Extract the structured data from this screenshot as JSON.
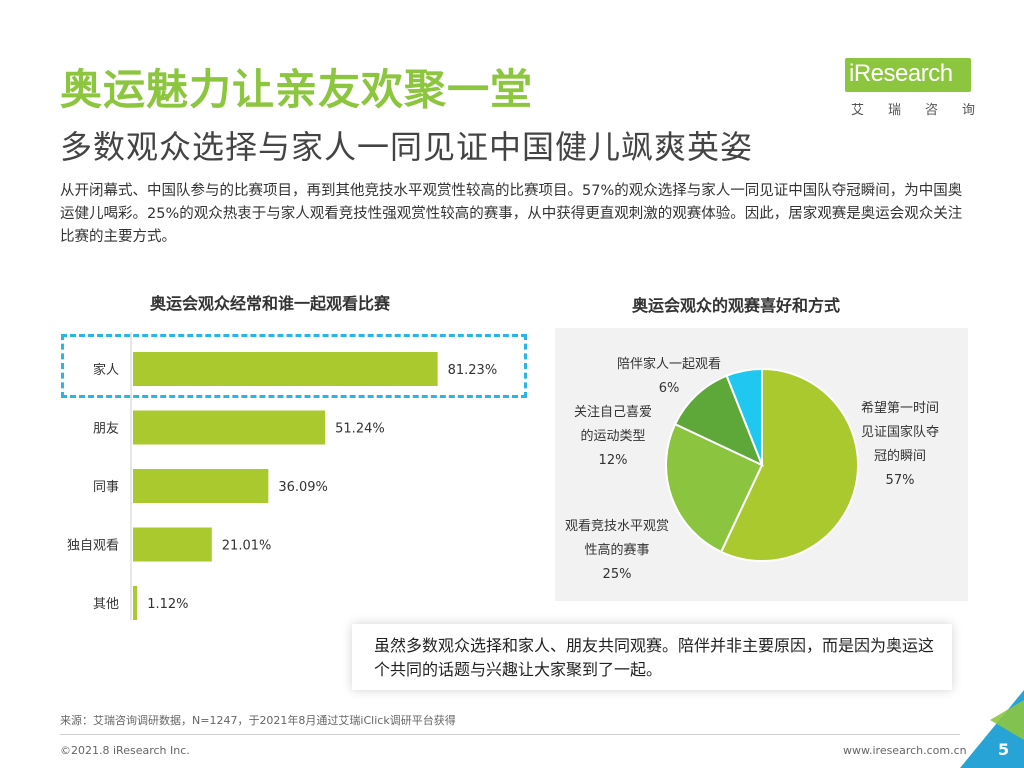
{
  "header": {
    "title": "奥运魅力让亲友欢聚一堂",
    "subtitle": "多数观众选择与家人一同见证中国健儿飒爽英姿",
    "description": "从开闭幕式、中国队参与的比赛项目，再到其他竞技水平观赏性较高的比赛项目。57%的观众选择与家人一同见证中国队夺冠瞬间，为中国奥运健儿喝彩。25%的观众热衷于与家人观看竞技性强观赏性较高的赛事，从中获得更直观刺激的观赛体验。因此，居家观赛是奥运会观众关注比赛的主要方式。"
  },
  "logo": {
    "text": "iResearch",
    "cn": "艾瑞咨询"
  },
  "callout": "虽然多数观众选择和家人、朋友共同观赛。陪伴并非主要原因，而是因为奥运这个共同的话题与兴趣让大家聚到了一起。",
  "footer": {
    "source": "来源：艾瑞咨询调研数据，N=1247，于2021年8月通过艾瑞iClick调研平台获得",
    "copyright": "©2021.8 iResearch Inc.",
    "website": "www.iresearch.com.cn",
    "page_number": "5"
  },
  "colors": {
    "accent": "#8cc63f",
    "highlight": "#2bb5e6"
  },
  "chart_data": [
    {
      "type": "bar",
      "orientation": "horizontal",
      "title": "奥运会观众经常和谁一起观看比赛",
      "categories": [
        "家人",
        "朋友",
        "同事",
        "独自观看",
        "其他"
      ],
      "values": [
        81.23,
        51.24,
        36.09,
        21.01,
        1.12
      ],
      "value_labels": [
        "81.23%",
        "51.24%",
        "36.09%",
        "21.01%",
        "1.12%"
      ],
      "unit": "%",
      "xlim": [
        0,
        100
      ],
      "color": "#a9c92f"
    },
    {
      "type": "pie",
      "title": "奥运会观众的观赛喜好和方式",
      "slices": [
        {
          "label_lines": [
            "希望第一时间",
            "见证国家队夺",
            "冠的瞬间"
          ],
          "value": 57,
          "value_label": "57%",
          "color": "#a9c92f"
        },
        {
          "label_lines": [
            "观看竞技水平观赏",
            "性高的赛事"
          ],
          "value": 25,
          "value_label": "25%",
          "color": "#8bc43f"
        },
        {
          "label_lines": [
            "关注自己喜爱",
            "的运动类型"
          ],
          "value": 12,
          "value_label": "12%",
          "color": "#5ea83a"
        },
        {
          "label_lines": [
            "陪伴家人一起观看"
          ],
          "value": 6,
          "value_label": "6%",
          "color": "#1ec8f0"
        }
      ]
    }
  ]
}
